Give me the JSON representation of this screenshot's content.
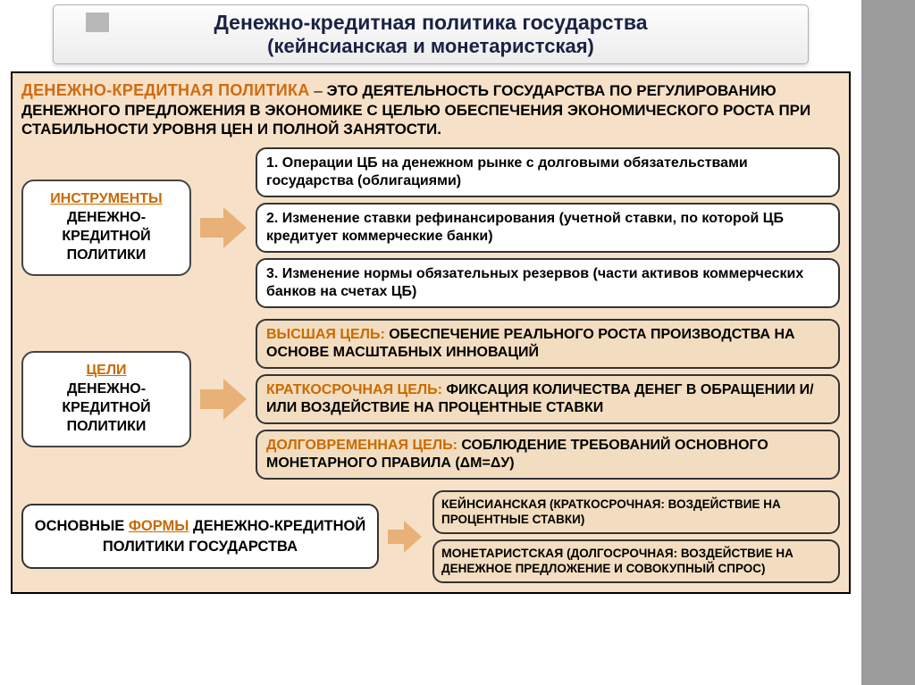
{
  "colors": {
    "slide_bg": "#f6e1c8",
    "accent_orange": "#cf6b11",
    "card_bg": "#ffffff",
    "tint_bg": "#f3ddc0",
    "arrow_fill": "#e8b178",
    "border": "#333333",
    "title_text": "#1a2244",
    "sidebar": "#9c9c9c"
  },
  "typography": {
    "base_font": "Arial",
    "title_pt": 23,
    "body_pt": 17,
    "card_pt": 16,
    "small_pt": 13
  },
  "title": {
    "line1": "Денежно-кредитная политика государства",
    "line2": "(кейнсианская и монетаристская)"
  },
  "definition": {
    "lead": "ДЕНЕЖНО-КРЕДИТНАЯ ПОЛИТИКА",
    "dash": " – ",
    "body": "ЭТО ДЕЯТЕЛЬНОСТЬ ГОСУДАРСТВА ПО РЕГУЛИРОВАНИЮ ДЕНЕЖНОГО ПРЕДЛОЖЕНИЯ В ЭКОНОМИКЕ С ЦЕЛЬЮ ОБЕСПЕЧЕНИЯ ЭКОНОМИЧЕСКОГО РОСТА ПРИ СТАБИЛЬНОСТИ УРОВНЯ ЦЕН И ПОЛНОЙ ЗАНЯТОСТИ."
  },
  "instruments": {
    "label_accent": "ИНСТРУМЕНТЫ",
    "label_rest": "ДЕНЕЖНО-КРЕДИТНОЙ ПОЛИТИКИ",
    "items": [
      "1.   Операции ЦБ на денежном рынке с долговыми обязательствами государства (облигациями)",
      "2. Изменение ставки рефинансирования (учетной ставки, по которой ЦБ кредитует коммерческие банки)",
      "3. Изменение нормы обязательных резервов (части активов коммерческих банков на счетах ЦБ)"
    ]
  },
  "goals": {
    "label_accent": "ЦЕЛИ",
    "label_rest": "ДЕНЕЖНО-КРЕДИТНОЙ ПОЛИТИКИ",
    "items": [
      {
        "lead": "ВЫСШАЯ ЦЕЛЬ:",
        "text": " ОБЕСПЕЧЕНИЕ РЕАЛЬНОГО РОСТА ПРОИЗВОДСТВА НА ОСНОВЕ МАСШТАБНЫХ ИННОВАЦИЙ"
      },
      {
        "lead": "КРАТКОСРОЧНАЯ ЦЕЛЬ:",
        "text": " ФИКСАЦИЯ КОЛИЧЕСТВА ДЕНЕГ В ОБРАЩЕНИИ И/ИЛИ ВОЗДЕЙСТВИЕ НА ПРОЦЕНТНЫЕ СТАВКИ"
      },
      {
        "lead": "ДОЛГОВРЕМЕННАЯ ЦЕЛЬ:",
        "text": " СОБЛЮДЕНИЕ ТРЕБОВАНИЙ ОСНОВНОГО МОНЕТАРНОГО ПРАВИЛА (ΔМ=ΔУ)"
      }
    ]
  },
  "forms": {
    "label_pre": "ОСНОВНЫЕ ",
    "label_accent": "ФОРМЫ",
    "label_post": " ДЕНЕЖНО-КРЕДИТНОЙ ПОЛИТИКИ ГОСУДАРСТВА",
    "items": [
      {
        "lead": "КЕЙНСИАНСКАЯ",
        "text": " (КРАТКОСРОЧНАЯ: ВОЗДЕЙСТВИЕ НА ПРОЦЕНТНЫЕ СТАВКИ)"
      },
      {
        "lead": "МОНЕТАРИСТСКАЯ",
        "text": " (ДОЛГОСРОЧНАЯ: ВОЗДЕЙСТВИЕ НА ДЕНЕЖНОЕ ПРЕДЛОЖЕНИЕ И СОВОКУПНЫЙ СПРОС)"
      }
    ]
  }
}
